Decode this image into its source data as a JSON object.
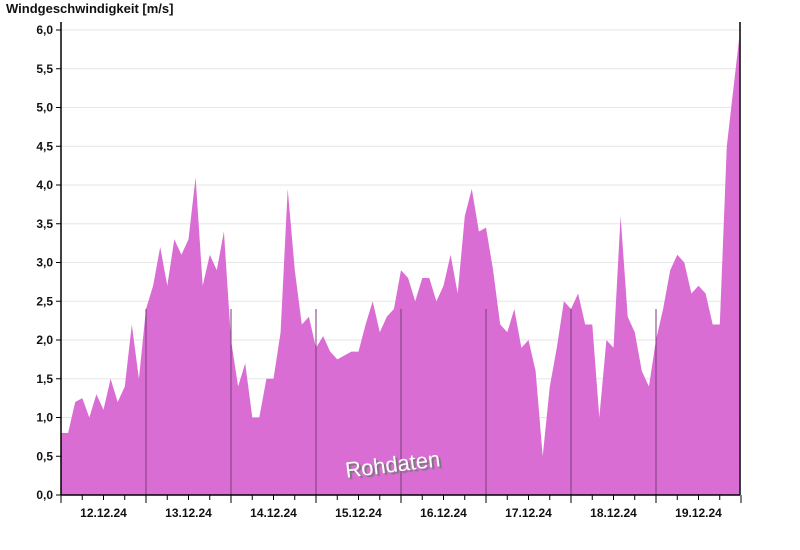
{
  "chart_data": {
    "type": "area",
    "title": "Windgeschwindigkeit [m/s]",
    "watermark": "Rohdaten",
    "xlabel": "",
    "ylabel": "Windgeschwindigkeit [m/s]",
    "ylim": [
      0,
      6
    ],
    "xlim": [
      "12.12.24 00:00",
      "20.12.24 00:00"
    ],
    "yticks": [
      "0,0",
      "0,5",
      "1,0",
      "1,5",
      "2,0",
      "2,5",
      "3,0",
      "3,5",
      "4,0",
      "4,5",
      "5,0",
      "5,5",
      "6,0"
    ],
    "xticks": [
      "12.12.24",
      "13.12.24",
      "14.12.24",
      "15.12.24",
      "16.12.24",
      "17.12.24",
      "18.12.24",
      "19.12.24"
    ],
    "grid": true,
    "colors": {
      "fill": "#d96dd4",
      "day_line": "#7a3a78",
      "grid": "#e6e6e6"
    },
    "series": [
      {
        "days": [
          "12.12.24",
          "13.12.24",
          "14.12.24",
          "15.12.24",
          "16.12.24",
          "17.12.24",
          "18.12.24",
          "19.12.24"
        ],
        "hours": [
          0,
          2,
          4,
          6,
          8,
          10,
          12,
          14,
          16,
          18,
          20,
          22
        ],
        "values": [
          [
            0.8,
            0.8,
            1.2,
            1.25,
            1.0,
            1.3,
            1.1,
            1.5,
            1.2,
            1.4,
            2.2,
            1.5
          ],
          [
            2.4,
            2.7,
            3.2,
            2.7,
            3.3,
            3.1,
            3.3,
            4.1,
            2.7,
            3.1,
            2.9,
            3.4
          ],
          [
            2.0,
            1.4,
            1.7,
            1.0,
            1.0,
            1.5,
            1.5,
            2.1,
            3.95,
            2.9,
            2.2,
            2.3
          ],
          [
            1.9,
            2.05,
            1.85,
            1.75,
            1.8,
            1.85,
            1.85,
            2.2,
            2.5,
            2.1,
            2.3,
            2.4
          ],
          [
            2.9,
            2.8,
            2.5,
            2.8,
            2.8,
            2.5,
            2.7,
            3.1,
            2.6,
            3.6,
            3.95,
            3.4
          ],
          [
            3.45,
            2.9,
            2.2,
            2.1,
            2.4,
            1.9,
            2.0,
            1.6,
            0.5,
            1.4,
            1.9,
            2.5
          ],
          [
            2.4,
            2.6,
            2.2,
            2.2,
            1.0,
            2.0,
            1.9,
            3.6,
            2.3,
            2.1,
            1.6,
            1.4
          ],
          [
            2.0,
            2.4,
            2.9,
            3.1,
            3.0,
            2.6,
            2.7,
            2.6,
            2.2,
            2.2,
            4.5,
            5.3
          ]
        ],
        "last": [
          "19.12.24 23:30",
          5.9
        ]
      }
    ]
  }
}
